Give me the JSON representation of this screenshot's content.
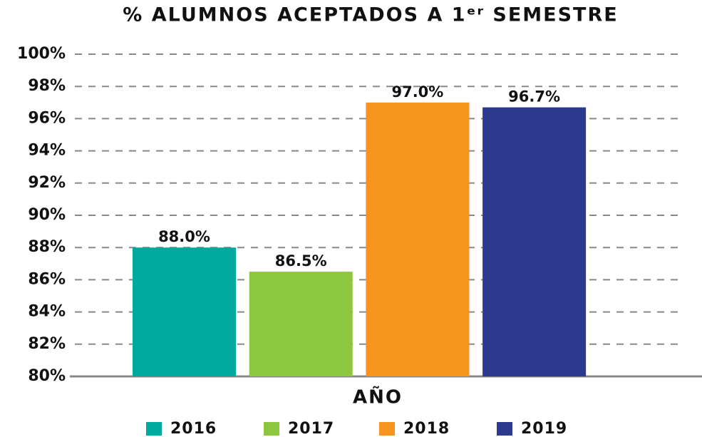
{
  "chart_data": {
    "type": "bar",
    "title": "% ALUMNOS ACEPTADOS A 1ᵉʳ SEMESTRE",
    "x_label": "AÑO",
    "categories": [
      "2016",
      "2017",
      "2018",
      "2019"
    ],
    "values": [
      88.0,
      86.5,
      97.0,
      96.7
    ],
    "value_labels": [
      "88.0%",
      "86.5%",
      "97.0%",
      "96.7%"
    ],
    "colors": [
      "#00a99d",
      "#8dc63f",
      "#f7941d",
      "#2e3a8f"
    ],
    "ylim": [
      80,
      100
    ],
    "yticks": [
      {
        "value": 80,
        "label": "80%"
      },
      {
        "value": 82,
        "label": "82%"
      },
      {
        "value": 84,
        "label": "84%"
      },
      {
        "value": 86,
        "label": "86%"
      },
      {
        "value": 88,
        "label": "88%"
      },
      {
        "value": 90,
        "label": "90%"
      },
      {
        "value": 92,
        "label": "92%"
      },
      {
        "value": 94,
        "label": "94%"
      },
      {
        "value": 96,
        "label": "96%"
      },
      {
        "value": 98,
        "label": "98%"
      },
      {
        "value": 100,
        "label": "100%"
      }
    ],
    "grid": true,
    "legend": "bottom"
  }
}
